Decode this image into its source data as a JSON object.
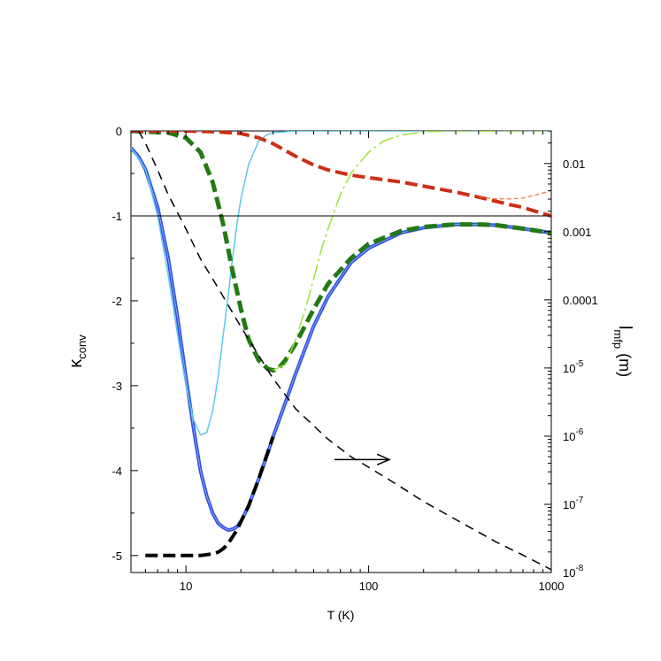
{
  "chart_data": {
    "type": "line",
    "x_scale": "log",
    "xlim": [
      5,
      1000
    ],
    "ylim_left": [
      -5.2,
      0
    ],
    "ylim_right": [
      1e-08,
      0.03
    ],
    "xlabel": "T (K)",
    "ylabel_left": {
      "main": "κ",
      "sub": "conv"
    },
    "ylabel_right": {
      "main": "l",
      "sub": "mfp",
      "unit": " (m)"
    },
    "x_ticks": [
      {
        "value": 10,
        "label": "10"
      },
      {
        "value": 100,
        "label": "100"
      },
      {
        "value": 1000,
        "label": "1000"
      }
    ],
    "y_ticks_left": [
      {
        "value": 0,
        "label": "0"
      },
      {
        "value": -1,
        "label": "-1"
      },
      {
        "value": -2,
        "label": "-2"
      },
      {
        "value": -3,
        "label": "-3"
      },
      {
        "value": -4,
        "label": "-4"
      },
      {
        "value": -5,
        "label": "-5"
      }
    ],
    "y_ticks_right": [
      {
        "value": 0.01,
        "base": "0.01",
        "exp": ""
      },
      {
        "value": 0.001,
        "base": "0.001",
        "exp": ""
      },
      {
        "value": 0.0001,
        "base": "0.0001",
        "exp": ""
      },
      {
        "value": 1e-05,
        "base": "10",
        "exp": "-5"
      },
      {
        "value": 1e-06,
        "base": "10",
        "exp": "-6"
      },
      {
        "value": 1e-07,
        "base": "10",
        "exp": "-7"
      },
      {
        "value": 1e-08,
        "base": "10",
        "exp": "-8"
      }
    ],
    "reference_line_y": -1,
    "annotation_arrow": {
      "x_from": 65,
      "x_to": 130,
      "y": -3.87
    },
    "series": [
      {
        "axis": "left",
        "color": "#2d4fe0",
        "style": "solid-double",
        "width": 4,
        "x": [
          5,
          5.5,
          6,
          7,
          8,
          9,
          10,
          11,
          12,
          13,
          14,
          15,
          16,
          17,
          18,
          19,
          20,
          22,
          25,
          28,
          30,
          35,
          40,
          50,
          60,
          80,
          100,
          150,
          200,
          300,
          400,
          500,
          700,
          1000
        ],
        "y": [
          -0.2,
          -0.3,
          -0.45,
          -0.9,
          -1.5,
          -2.2,
          -2.9,
          -3.5,
          -4.0,
          -4.3,
          -4.5,
          -4.62,
          -4.67,
          -4.7,
          -4.69,
          -4.66,
          -4.6,
          -4.42,
          -4.1,
          -3.8,
          -3.6,
          -3.2,
          -2.85,
          -2.3,
          -1.95,
          -1.55,
          -1.38,
          -1.2,
          -1.14,
          -1.1,
          -1.1,
          -1.11,
          -1.15,
          -1.2
        ]
      },
      {
        "axis": "left",
        "color": "#000000",
        "style": "dashed-thick",
        "width": 4,
        "x": [
          6,
          7,
          8,
          9,
          10,
          12,
          14,
          15,
          16,
          17,
          18,
          19,
          20,
          22,
          25,
          30
        ],
        "y": [
          -5.0,
          -5.0,
          -5.0,
          -5.0,
          -5.0,
          -5.0,
          -4.98,
          -4.96,
          -4.92,
          -4.86,
          -4.78,
          -4.7,
          -4.6,
          -4.42,
          -4.1,
          -3.6
        ]
      },
      {
        "axis": "left",
        "color": "#5bc8ee",
        "style": "solid",
        "width": 1.5,
        "x": [
          5,
          6,
          7,
          8,
          9,
          10,
          11,
          12,
          13,
          14,
          15,
          16,
          17,
          18,
          19,
          20,
          22,
          25,
          28,
          30,
          35,
          40,
          50,
          1000
        ],
        "y": [
          -0.2,
          -0.45,
          -1.0,
          -1.7,
          -2.4,
          -3.0,
          -3.4,
          -3.58,
          -3.55,
          -3.3,
          -2.9,
          -2.4,
          -1.95,
          -1.5,
          -1.1,
          -0.8,
          -0.4,
          -0.12,
          -0.04,
          -0.02,
          -0.01,
          0,
          0,
          0
        ]
      },
      {
        "axis": "left",
        "color": "#237a14",
        "style": "dashed-thick",
        "width": 5,
        "x": [
          5,
          8,
          10,
          12,
          14,
          16,
          18,
          20,
          22,
          25,
          28,
          30,
          32,
          35,
          40,
          50,
          60,
          80,
          100,
          150,
          200,
          300,
          400,
          500,
          700,
          1000
        ],
        "y": [
          0,
          -0.02,
          -0.08,
          -0.25,
          -0.6,
          -1.1,
          -1.65,
          -2.1,
          -2.45,
          -2.7,
          -2.8,
          -2.82,
          -2.8,
          -2.7,
          -2.5,
          -2.1,
          -1.8,
          -1.5,
          -1.33,
          -1.18,
          -1.13,
          -1.1,
          -1.1,
          -1.11,
          -1.15,
          -1.2
        ]
      },
      {
        "axis": "left",
        "color": "#a0e23c",
        "style": "dash-dot",
        "width": 1.5,
        "x": [
          30,
          35,
          40,
          45,
          50,
          55,
          60,
          70,
          80,
          100,
          120,
          150,
          200,
          300,
          1000
        ],
        "y": [
          -2.82,
          -2.75,
          -2.45,
          -2.1,
          -1.75,
          -1.4,
          -1.15,
          -0.75,
          -0.5,
          -0.25,
          -0.12,
          -0.05,
          -0.01,
          0,
          0
        ]
      },
      {
        "axis": "left",
        "color": "#cc2e16",
        "style": "dashed-thick",
        "width": 4,
        "x": [
          5,
          10,
          15,
          20,
          25,
          30,
          35,
          40,
          50,
          60,
          80,
          100,
          150,
          200,
          300,
          400,
          500,
          600,
          700,
          800,
          1000
        ],
        "y": [
          0,
          0,
          -0.01,
          -0.03,
          -0.08,
          -0.15,
          -0.23,
          -0.3,
          -0.4,
          -0.46,
          -0.52,
          -0.55,
          -0.6,
          -0.65,
          -0.72,
          -0.78,
          -0.83,
          -0.87,
          -0.9,
          -0.94,
          -1.0
        ]
      },
      {
        "axis": "left",
        "color": "#f06b2a",
        "style": "dashed-thin",
        "width": 1.2,
        "x": [
          400,
          500,
          600,
          700,
          800,
          900,
          1000
        ],
        "y": [
          -0.78,
          -0.8,
          -0.8,
          -0.79,
          -0.76,
          -0.73,
          -0.7
        ]
      },
      {
        "axis": "right",
        "color": "#000000",
        "style": "dashed",
        "width": 1.5,
        "x": [
          5.5,
          6,
          7,
          8,
          10,
          12,
          15,
          20,
          30,
          40,
          60,
          80,
          100,
          150,
          200,
          300,
          500,
          700,
          1000
        ],
        "y": [
          0.03,
          0.02,
          0.008,
          0.0035,
          0.0011,
          0.0004,
          0.00015,
          4e-05,
          7e-06,
          2.5e-06,
          9e-07,
          5e-07,
          3.5e-07,
          1.8e-07,
          1.1e-07,
          6e-08,
          2.8e-08,
          1.8e-08,
          1.1e-08
        ]
      }
    ]
  }
}
